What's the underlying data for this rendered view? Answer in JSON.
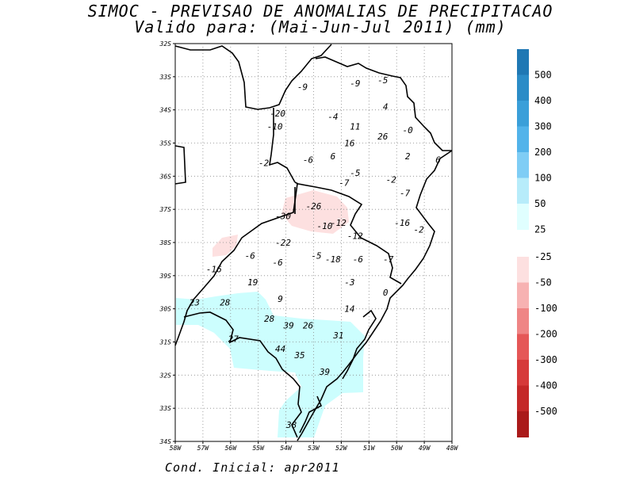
{
  "title": {
    "line1": "SIMOC - PREVISAO DE ANOMALIAS DE PRECIPITACAO",
    "line2": "Valido para: (Mai-Jun-Jul 2011) (mm)"
  },
  "footer": "Cond. Inicial: apr2011",
  "axes": {
    "lat_labels": [
      "32S",
      "33S",
      "34S",
      "35S",
      "36S",
      "37S",
      "38S",
      "39S",
      "30S",
      "31S",
      "32S",
      "33S",
      "34S"
    ],
    "lon_labels": [
      "58W",
      "57W",
      "56W",
      "55W",
      "54W",
      "53W",
      "52W",
      "51W",
      "50W",
      "49W",
      "48W"
    ]
  },
  "colorbar_positive": {
    "labels": [
      "500",
      "400",
      "300",
      "200",
      "100",
      "50",
      "25"
    ],
    "colors": [
      "#1f78b4",
      "#2b8cc7",
      "#3a9fd9",
      "#52b3ea",
      "#7fcdf5",
      "#b7ecfa",
      "#e0ffff"
    ]
  },
  "colorbar_negative": {
    "labels": [
      "-25",
      "-50",
      "-100",
      "-200",
      "-300",
      "-400",
      "-500"
    ],
    "colors": [
      "#fde0e0",
      "#f7b2b2",
      "#ef8585",
      "#e55757",
      "#d63a3a",
      "#c42828",
      "#aa1a1a"
    ]
  },
  "anomaly_values": [
    {
      "text": "-9",
      "lon": 53.4,
      "lat": 23.3
    },
    {
      "text": "-9",
      "lon": 51.5,
      "lat": 23.2
    },
    {
      "text": "-5",
      "lon": 50.5,
      "lat": 23.1
    },
    {
      "text": "4",
      "lon": 50.4,
      "lat": 23.9
    },
    {
      "text": "-20",
      "lon": 54.3,
      "lat": 24.1
    },
    {
      "text": "-4",
      "lon": 52.3,
      "lat": 24.2
    },
    {
      "text": "11",
      "lon": 51.5,
      "lat": 24.5
    },
    {
      "text": "-10",
      "lon": 54.4,
      "lat": 24.5
    },
    {
      "text": "-0",
      "lon": 49.6,
      "lat": 24.6
    },
    {
      "text": "26",
      "lon": 50.5,
      "lat": 24.8
    },
    {
      "text": "16",
      "lon": 51.7,
      "lat": 25.0
    },
    {
      "text": "6",
      "lon": 52.3,
      "lat": 25.4
    },
    {
      "text": "2",
      "lon": 49.6,
      "lat": 25.4
    },
    {
      "text": "6",
      "lon": 48.5,
      "lat": 25.5
    },
    {
      "text": "-6",
      "lon": 53.2,
      "lat": 25.5
    },
    {
      "text": "-2",
      "lon": 54.8,
      "lat": 25.6
    },
    {
      "text": "-5",
      "lon": 51.5,
      "lat": 25.9
    },
    {
      "text": "-2",
      "lon": 50.2,
      "lat": 26.1
    },
    {
      "text": "-7",
      "lon": 51.9,
      "lat": 26.2
    },
    {
      "text": "-7",
      "lon": 49.7,
      "lat": 26.5
    },
    {
      "text": "-26",
      "lon": 53.0,
      "lat": 26.9
    },
    {
      "text": "-30",
      "lon": 54.1,
      "lat": 27.2
    },
    {
      "text": "-12",
      "lon": 52.1,
      "lat": 27.4
    },
    {
      "text": "-10",
      "lon": 52.6,
      "lat": 27.5
    },
    {
      "text": "-16",
      "lon": 49.8,
      "lat": 27.4
    },
    {
      "text": "-2",
      "lon": 49.2,
      "lat": 27.6
    },
    {
      "text": "-12",
      "lon": 51.5,
      "lat": 27.8
    },
    {
      "text": "-22",
      "lon": 54.1,
      "lat": 28.0
    },
    {
      "text": "-6",
      "lon": 55.3,
      "lat": 28.4
    },
    {
      "text": "-5",
      "lon": 52.9,
      "lat": 28.4
    },
    {
      "text": "-18",
      "lon": 52.3,
      "lat": 28.5
    },
    {
      "text": "-6",
      "lon": 51.4,
      "lat": 28.5
    },
    {
      "text": "-7",
      "lon": 50.3,
      "lat": 28.5
    },
    {
      "text": "-6",
      "lon": 54.3,
      "lat": 28.6
    },
    {
      "text": "-16",
      "lon": 56.6,
      "lat": 28.8
    },
    {
      "text": "19",
      "lon": 55.2,
      "lat": 29.2
    },
    {
      "text": "-3",
      "lon": 51.7,
      "lat": 29.2
    },
    {
      "text": "0",
      "lon": 50.4,
      "lat": 29.5
    },
    {
      "text": "9",
      "lon": 54.2,
      "lat": 29.7
    },
    {
      "text": "23",
      "lon": 57.3,
      "lat": 29.8
    },
    {
      "text": "28",
      "lon": 56.2,
      "lat": 29.8
    },
    {
      "text": "14",
      "lon": 51.7,
      "lat": 30.0
    },
    {
      "text": "28",
      "lon": 54.6,
      "lat": 30.3
    },
    {
      "text": "39",
      "lon": 53.9,
      "lat": 30.5
    },
    {
      "text": "26",
      "lon": 53.2,
      "lat": 30.5
    },
    {
      "text": "31",
      "lon": 52.1,
      "lat": 30.8
    },
    {
      "text": "27",
      "lon": 55.9,
      "lat": 30.9
    },
    {
      "text": "44",
      "lon": 54.2,
      "lat": 31.2
    },
    {
      "text": "35",
      "lon": 53.5,
      "lat": 31.4
    },
    {
      "text": "39",
      "lon": 52.6,
      "lat": 31.9
    },
    {
      "text": "38",
      "lon": 53.8,
      "lat": 33.5
    }
  ]
}
